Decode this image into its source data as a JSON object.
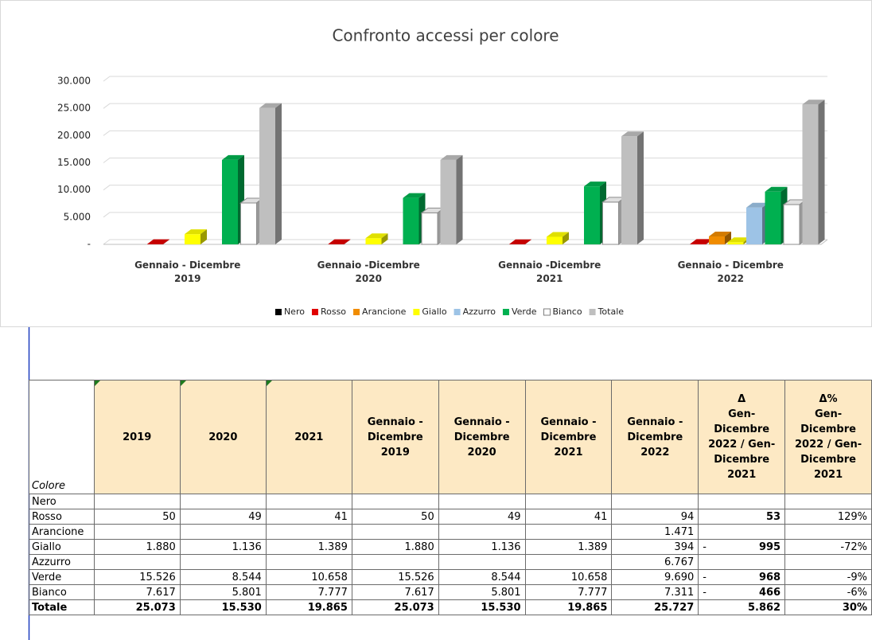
{
  "chart_data": {
    "type": "bar",
    "title": "Confronto accessi per colore",
    "categories": [
      "Gennaio - Dicembre\n2019",
      "Gennaio -Dicembre\n2020",
      "Gennaio -Dicembre\n2021",
      "Gennaio - Dicembre\n2022"
    ],
    "series": [
      {
        "name": "Nero",
        "color": "#000000",
        "values": [
          null,
          null,
          null,
          null
        ]
      },
      {
        "name": "Rosso",
        "color": "#e00000",
        "values": [
          50,
          49,
          41,
          94
        ]
      },
      {
        "name": "Arancione",
        "color": "#f08c00",
        "values": [
          null,
          null,
          null,
          1471
        ]
      },
      {
        "name": "Giallo",
        "color": "#ffff00",
        "values": [
          1880,
          1136,
          1389,
          394
        ]
      },
      {
        "name": "Azzurro",
        "color": "#9dc3e6",
        "values": [
          null,
          null,
          null,
          6767
        ]
      },
      {
        "name": "Verde",
        "color": "#00b050",
        "values": [
          15526,
          8544,
          10658,
          9690
        ]
      },
      {
        "name": "Bianco",
        "color": "#ffffff",
        "values": [
          7617,
          5801,
          7777,
          7311
        ]
      },
      {
        "name": "Totale",
        "color": "#bfbfbf",
        "values": [
          25073,
          15530,
          19865,
          25727
        ]
      }
    ],
    "ylim": [
      0,
      30000
    ],
    "yticks": [
      {
        "value": 0,
        "label": "-"
      },
      {
        "value": 5000,
        "label": "5.000"
      },
      {
        "value": 10000,
        "label": "10.000"
      },
      {
        "value": 15000,
        "label": "15.000"
      },
      {
        "value": 20000,
        "label": "20.000"
      },
      {
        "value": 25000,
        "label": "25.000"
      },
      {
        "value": 30000,
        "label": "30.000"
      }
    ],
    "grid": true,
    "legend": "bottom"
  },
  "table": {
    "header": [
      "Colore",
      "2019",
      "2020",
      "2021",
      "Gennaio -\nDicembre\n2019",
      "Gennaio -\nDicembre\n2020",
      "Gennaio -\nDicembre\n2021",
      "Gennaio -\nDicembre\n2022",
      "Δ\nGen-\nDicembre\n2022 / Gen-\nDicembre\n2021",
      "Δ%\nGen-\nDicembre\n2022 / Gen-\nDicembre\n2021"
    ],
    "rows": [
      {
        "label": "Nero",
        "cells": [
          null,
          null,
          null,
          null,
          null,
          null,
          null,
          null,
          null
        ]
      },
      {
        "label": "Rosso",
        "cells": [
          "50",
          "49",
          "41",
          "50",
          "49",
          "41",
          "94",
          "53",
          "129%"
        ]
      },
      {
        "label": "Arancione",
        "cells": [
          null,
          null,
          null,
          null,
          null,
          null,
          "1.471",
          null,
          null
        ]
      },
      {
        "label": "Giallo",
        "cells": [
          "1.880",
          "1.136",
          "1.389",
          "1.880",
          "1.136",
          "1.389",
          "394",
          [
            "-",
            "995"
          ],
          "-72%"
        ]
      },
      {
        "label": "Azzurro",
        "cells": [
          null,
          null,
          null,
          null,
          null,
          null,
          "6.767",
          null,
          null
        ]
      },
      {
        "label": "Verde",
        "cells": [
          "15.526",
          "8.544",
          "10.658",
          "15.526",
          "8.544",
          "10.658",
          "9.690",
          [
            "-",
            "968"
          ],
          "-9%"
        ]
      },
      {
        "label": "Bianco",
        "cells": [
          "7.617",
          "5.801",
          "7.777",
          "7.617",
          "5.801",
          "7.777",
          "7.311",
          [
            "-",
            "466"
          ],
          "-6%"
        ]
      },
      {
        "label": "Totale",
        "cells": [
          "25.073",
          "15.530",
          "19.865",
          "25.073",
          "15.530",
          "19.865",
          "25.727",
          "5.862",
          "30%"
        ]
      }
    ]
  }
}
